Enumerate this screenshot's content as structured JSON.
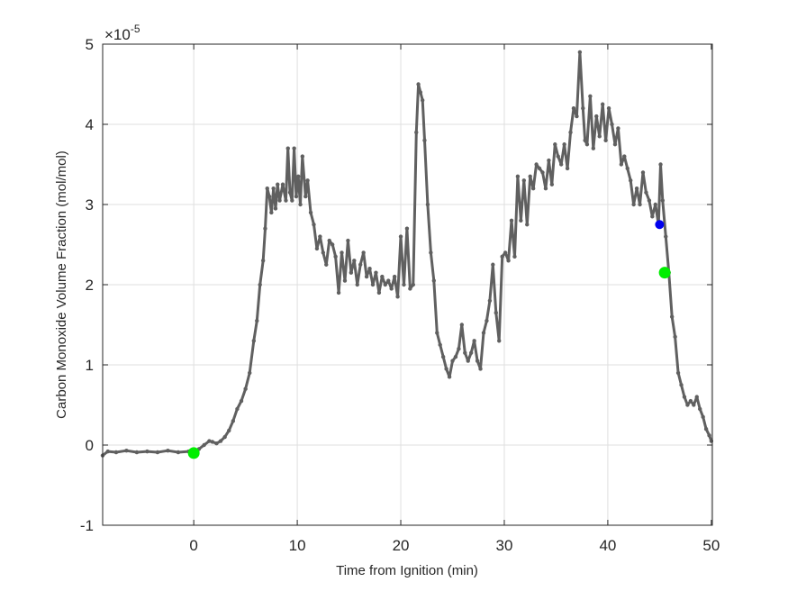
{
  "figure": {
    "background": "#ffffff",
    "axes_color": "#262626",
    "grid_color": "#dfdfdf",
    "line_color": "#606060",
    "exponent_label": "×10",
    "exponent_power": "-5"
  },
  "chart_data": {
    "type": "line",
    "title": "",
    "xlabel": "Time from Ignition (min)",
    "ylabel": "Carbon Monoxide Volume Fraction (mol/mol)",
    "y_scale_factor": 1e-05,
    "xlim": [
      -8.8,
      50.1
    ],
    "ylim": [
      -1,
      5
    ],
    "xticks": [
      0,
      10,
      20,
      30,
      40,
      50
    ],
    "xtick_labels": [
      "0",
      "10",
      "20",
      "30",
      "40",
      "50"
    ],
    "yticks": [
      -1,
      0,
      1,
      2,
      3,
      4,
      5
    ],
    "ytick_labels": [
      "-1",
      "0",
      "1",
      "2",
      "3",
      "4",
      "5"
    ],
    "grid": true,
    "legend": null,
    "series": [
      {
        "name": "CO volume fraction",
        "color": "#606060",
        "marker": "dot",
        "x": [
          -8.8,
          -8.3,
          -7.5,
          -6.5,
          -5.5,
          -4.5,
          -3.5,
          -2.5,
          -1.5,
          -0.5,
          0,
          0.5,
          1,
          1.5,
          1.8,
          2.2,
          2.6,
          3,
          3.4,
          3.8,
          4.2,
          4.6,
          5,
          5.4,
          5.8,
          6.1,
          6.4,
          6.7,
          6.9,
          7.1,
          7.3,
          7.5,
          7.7,
          7.9,
          8.1,
          8.3,
          8.6,
          8.9,
          9.1,
          9.3,
          9.5,
          9.7,
          9.9,
          10.1,
          10.3,
          10.5,
          10.8,
          11,
          11.3,
          11.6,
          11.9,
          12.2,
          12.5,
          12.8,
          13.1,
          13.4,
          13.7,
          14,
          14.3,
          14.6,
          14.9,
          15.2,
          15.5,
          15.8,
          16.1,
          16.4,
          16.7,
          17,
          17.3,
          17.6,
          17.9,
          18.2,
          18.5,
          18.8,
          19.1,
          19.4,
          19.7,
          20,
          20.3,
          20.6,
          20.9,
          21.2,
          21.5,
          21.7,
          21.9,
          22.1,
          22.3,
          22.6,
          22.9,
          23.2,
          23.5,
          23.8,
          24.1,
          24.4,
          24.7,
          25,
          25.3,
          25.6,
          25.9,
          26.2,
          26.5,
          26.8,
          27.1,
          27.4,
          27.7,
          28,
          28.3,
          28.6,
          28.9,
          29.2,
          29.5,
          29.8,
          30.1,
          30.4,
          30.7,
          31,
          31.3,
          31.6,
          31.9,
          32.2,
          32.5,
          32.8,
          33.1,
          33.4,
          33.7,
          34,
          34.3,
          34.6,
          34.9,
          35.2,
          35.5,
          35.8,
          36.1,
          36.4,
          36.7,
          37,
          37.3,
          37.6,
          37.8,
          38,
          38.3,
          38.6,
          38.9,
          39.2,
          39.5,
          39.8,
          40.1,
          40.4,
          40.7,
          41,
          41.3,
          41.6,
          41.9,
          42.2,
          42.5,
          42.8,
          43.1,
          43.4,
          43.7,
          44,
          44.3,
          44.6,
          44.9,
          45.1,
          45.3,
          45.6,
          45.9,
          46.2,
          46.5,
          46.8,
          47.1,
          47.4,
          47.7,
          48,
          48.3,
          48.6,
          48.9,
          49.2,
          49.5,
          49.8,
          50
        ],
        "y": [
          -0.13,
          -0.08,
          -0.09,
          -0.07,
          -0.09,
          -0.08,
          -0.09,
          -0.07,
          -0.09,
          -0.08,
          -0.1,
          -0.05,
          0,
          0.05,
          0.04,
          0.02,
          0.05,
          0.1,
          0.18,
          0.3,
          0.45,
          0.55,
          0.7,
          0.9,
          1.3,
          1.55,
          2.0,
          2.3,
          2.7,
          3.2,
          3.1,
          2.9,
          3.2,
          2.95,
          3.25,
          3.05,
          3.25,
          3.05,
          3.7,
          3.15,
          3.05,
          3.7,
          3.1,
          3.35,
          3.0,
          3.6,
          3.1,
          3.3,
          2.9,
          2.75,
          2.45,
          2.6,
          2.4,
          2.25,
          2.55,
          2.5,
          2.35,
          1.9,
          2.4,
          2.05,
          2.55,
          2.15,
          2.3,
          2.0,
          2.25,
          2.4,
          2.1,
          2.2,
          2.0,
          2.15,
          1.9,
          2.1,
          2.0,
          2.05,
          1.95,
          2.1,
          1.85,
          2.6,
          2.0,
          2.7,
          1.95,
          2.0,
          3.9,
          4.5,
          4.4,
          4.3,
          3.8,
          3.0,
          2.4,
          2.05,
          1.4,
          1.25,
          1.1,
          0.95,
          0.85,
          1.05,
          1.1,
          1.2,
          1.5,
          1.15,
          1.05,
          1.15,
          1.3,
          1.05,
          0.95,
          1.4,
          1.55,
          1.8,
          2.25,
          1.65,
          1.3,
          2.35,
          2.4,
          2.3,
          2.8,
          2.35,
          3.35,
          2.8,
          3.3,
          2.75,
          3.35,
          3.2,
          3.5,
          3.45,
          3.4,
          3.2,
          3.55,
          3.25,
          3.75,
          3.6,
          3.5,
          3.75,
          3.45,
          3.9,
          4.2,
          4.1,
          4.9,
          4.2,
          3.8,
          3.75,
          4.35,
          3.7,
          4.1,
          3.85,
          4.25,
          3.8,
          4.2,
          4.0,
          3.75,
          3.95,
          3.5,
          3.6,
          3.45,
          3.3,
          3.0,
          3.2,
          3.0,
          3.4,
          3.15,
          3.05,
          2.85,
          3.0,
          2.75,
          3.5,
          3.05,
          2.6,
          2.15,
          1.6,
          1.35,
          0.9,
          0.75,
          0.6,
          0.5,
          0.55,
          0.5,
          0.6,
          0.45,
          0.35,
          0.2,
          0.12,
          0.05
        ]
      }
    ],
    "markers": [
      {
        "name": "ignition-marker",
        "x": 0,
        "y": -0.1,
        "color": "#00ee00",
        "size": "large"
      },
      {
        "name": "blue-event-marker",
        "x": 45.0,
        "y": 2.75,
        "color": "#0000ee",
        "size": "medium"
      },
      {
        "name": "green-end-marker",
        "x": 45.5,
        "y": 2.15,
        "color": "#00ee00",
        "size": "large"
      }
    ]
  }
}
